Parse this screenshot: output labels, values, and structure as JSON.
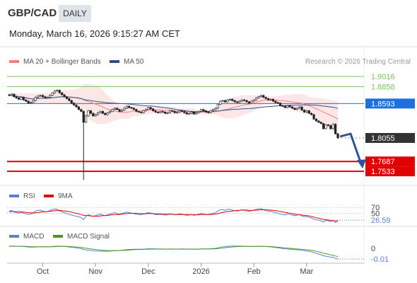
{
  "header": {
    "pair": "GBP/CAD",
    "timeframe": "DAILY",
    "datetime": "Monday, March 16, 2026 9:15:27 AM CET"
  },
  "colors": {
    "ma20": "#f08080",
    "ma50": "#2e4f8a",
    "rsi": "#5b7fd6",
    "rsi_ma": "#e00000",
    "macd": "#5b7fd6",
    "macd_signal": "#4a9a1a",
    "resistance": "#7cc35a",
    "support": "#e00000",
    "pivot": "#1f6fe0",
    "last": "#333333"
  },
  "chart_data": [
    {
      "type": "candlestick",
      "legend": [
        {
          "label": "MA 20 + Bollinger Bands",
          "color": "#f08080"
        },
        {
          "label": "MA 50",
          "color": "#2e4f8a"
        }
      ],
      "source_note": "Research © 2026 Trading Central",
      "x_ticks": [
        "Oct",
        "Nov",
        "Dec",
        "2026",
        "Feb",
        "Mar"
      ],
      "ylim": [
        1.738,
        1.915
      ],
      "levels": [
        {
          "value": 1.9016,
          "label": "1.9016",
          "kind": "resistance"
        },
        {
          "value": 1.8858,
          "label": "1.8858",
          "kind": "resistance"
        },
        {
          "value": 1.8593,
          "label": "1.8593",
          "kind": "pivot"
        },
        {
          "value": 1.8055,
          "label": "1.8055",
          "kind": "last"
        },
        {
          "value": 1.7687,
          "label": "1.7687",
          "kind": "support"
        },
        {
          "value": 1.7533,
          "label": "1.7533",
          "kind": "support"
        }
      ],
      "close": [
        1.872,
        1.874,
        1.87,
        1.868,
        1.866,
        1.869,
        1.865,
        1.863,
        1.86,
        1.861,
        1.864,
        1.869,
        1.871,
        1.872,
        1.87,
        1.868,
        1.869,
        1.872,
        1.876,
        1.879,
        1.88,
        1.876,
        1.873,
        1.87,
        1.867,
        1.864,
        1.86,
        1.857,
        1.854,
        1.85,
        1.847,
        1.83,
        1.84,
        1.848,
        1.844,
        1.84,
        1.842,
        1.845,
        1.847,
        1.844,
        1.842,
        1.845,
        1.847,
        1.85,
        1.852,
        1.85,
        1.847,
        1.849,
        1.852,
        1.855,
        1.853,
        1.852,
        1.85,
        1.847,
        1.846,
        1.845,
        1.848,
        1.85,
        1.853,
        1.851,
        1.848,
        1.846,
        1.845,
        1.847,
        1.846,
        1.844,
        1.845,
        1.848,
        1.847,
        1.845,
        1.846,
        1.848,
        1.847,
        1.845,
        1.843,
        1.844,
        1.846,
        1.843,
        1.845,
        1.847,
        1.85,
        1.848,
        1.846,
        1.845,
        1.848,
        1.85,
        1.852,
        1.858,
        1.863,
        1.864,
        1.862,
        1.865,
        1.866,
        1.864,
        1.862,
        1.861,
        1.863,
        1.865,
        1.864,
        1.862,
        1.86,
        1.863,
        1.865,
        1.868,
        1.87,
        1.872,
        1.869,
        1.867,
        1.865,
        1.866,
        1.863,
        1.861,
        1.86,
        1.856,
        1.855,
        1.853,
        1.856,
        1.854,
        1.852,
        1.85,
        1.852,
        1.854,
        1.849,
        1.846,
        1.848,
        1.844,
        1.842,
        1.835,
        1.832,
        1.83,
        1.828,
        1.82,
        1.826,
        1.825,
        1.82,
        1.827,
        1.812,
        1.8055
      ]
    },
    {
      "type": "line",
      "legend": [
        {
          "label": "RSI",
          "color": "#5b7fd6"
        },
        {
          "label": "9MA",
          "color": "#e00000"
        }
      ],
      "ylim": [
        15,
        85
      ],
      "levels": [
        {
          "value": 70,
          "label": "70"
        },
        {
          "value": 50,
          "label": "50"
        }
      ],
      "last_label": "26.59",
      "series": [
        {
          "name": "RSI",
          "values": [
            58,
            60,
            55,
            52,
            50,
            54,
            50,
            48,
            46,
            47,
            52,
            58,
            60,
            61,
            57,
            55,
            56,
            60,
            63,
            65,
            64,
            58,
            55,
            52,
            49,
            46,
            44,
            42,
            40,
            38,
            36,
            28,
            40,
            45,
            42,
            40,
            42,
            45,
            47,
            44,
            42,
            45,
            47,
            50,
            52,
            49,
            47,
            49,
            52,
            54,
            52,
            51,
            49,
            47,
            46,
            45,
            48,
            50,
            53,
            51,
            48,
            46,
            45,
            47,
            46,
            44,
            45,
            48,
            47,
            45,
            46,
            48,
            47,
            45,
            43,
            44,
            46,
            43,
            45,
            47,
            50,
            48,
            46,
            45,
            48,
            50,
            52,
            58,
            62,
            63,
            60,
            63,
            64,
            61,
            59,
            58,
            60,
            62,
            60,
            58,
            56,
            59,
            61,
            63,
            65,
            66,
            62,
            59,
            57,
            58,
            54,
            52,
            51,
            47,
            46,
            44,
            48,
            46,
            44,
            42,
            44,
            46,
            41,
            38,
            40,
            36,
            34,
            30,
            28,
            26,
            25,
            20,
            26,
            25,
            21,
            27,
            18,
            26.59
          ]
        },
        {
          "name": "9MA",
          "values": [
            55,
            56,
            56,
            55,
            55,
            55,
            54,
            53,
            52,
            52,
            51,
            52,
            53,
            54,
            55,
            55,
            56,
            57,
            58,
            59,
            60,
            60,
            59,
            58,
            57,
            56,
            54,
            52,
            50,
            48,
            46,
            43,
            42,
            42,
            41,
            40,
            40,
            40,
            41,
            42,
            42,
            43,
            44,
            45,
            46,
            46,
            46,
            47,
            48,
            49,
            50,
            50,
            50,
            50,
            49,
            49,
            48,
            48,
            49,
            49,
            49,
            48,
            48,
            48,
            47,
            47,
            47,
            47,
            47,
            46,
            46,
            46,
            46,
            46,
            46,
            46,
            45,
            45,
            45,
            45,
            46,
            46,
            46,
            46,
            46,
            47,
            47,
            49,
            51,
            53,
            54,
            56,
            57,
            58,
            59,
            60,
            60,
            61,
            61,
            61,
            60,
            60,
            60,
            61,
            61,
            62,
            62,
            62,
            61,
            61,
            60,
            59,
            58,
            56,
            55,
            53,
            52,
            50,
            49,
            47,
            46,
            45,
            44,
            43,
            42,
            41,
            39,
            37,
            35,
            33,
            31,
            29,
            28,
            27,
            26,
            25,
            24,
            24
          ]
        }
      ]
    },
    {
      "type": "line",
      "legend": [
        {
          "label": "MACD",
          "color": "#5b7fd6"
        },
        {
          "label": "MACD Signal",
          "color": "#4a9a1a"
        }
      ],
      "ylim": [
        -0.014,
        0.006
      ],
      "levels": [
        {
          "value": 0,
          "label": "0"
        },
        {
          "value": -0.01,
          "label": "-0.01"
        }
      ],
      "series": [
        {
          "name": "MACD",
          "values": [
            0.002,
            0.0021,
            0.0021,
            0.002,
            0.0019,
            0.0018,
            0.0017,
            0.0015,
            0.0013,
            0.0012,
            0.0012,
            0.0013,
            0.0014,
            0.0015,
            0.0015,
            0.0014,
            0.0014,
            0.0015,
            0.0017,
            0.0019,
            0.0021,
            0.0021,
            0.002,
            0.0018,
            0.0016,
            0.0013,
            0.001,
            0.0007,
            0.0004,
            0.0001,
            -0.0003,
            -0.0011,
            -0.0015,
            -0.0017,
            -0.002,
            -0.0023,
            -0.0025,
            -0.0026,
            -0.0026,
            -0.0027,
            -0.0027,
            -0.0027,
            -0.0026,
            -0.0024,
            -0.0022,
            -0.002,
            -0.0019,
            -0.0017,
            -0.0015,
            -0.0012,
            -0.001,
            -0.0009,
            -0.0008,
            -0.0008,
            -0.0008,
            -0.0008,
            -0.0007,
            -0.0006,
            -0.0004,
            -0.0004,
            -0.0004,
            -0.0005,
            -0.0006,
            -0.0006,
            -0.0006,
            -0.0007,
            -0.0007,
            -0.0006,
            -0.0006,
            -0.0007,
            -0.0007,
            -0.0006,
            -0.0006,
            -0.0006,
            -0.0007,
            -0.0007,
            -0.0007,
            -0.0008,
            -0.0008,
            -0.0007,
            -0.0005,
            -0.0005,
            -0.0005,
            -0.0005,
            -0.0004,
            -0.0002,
            0.0,
            0.0005,
            0.001,
            0.0014,
            0.0016,
            0.0019,
            0.0021,
            0.0022,
            0.0022,
            0.0021,
            0.0021,
            0.0021,
            0.002,
            0.0019,
            0.0017,
            0.0017,
            0.0017,
            0.0018,
            0.0019,
            0.002,
            0.0019,
            0.0017,
            0.0015,
            0.0014,
            0.0011,
            0.0008,
            0.0005,
            0.0001,
            -0.0002,
            -0.0005,
            -0.0006,
            -0.0008,
            -0.001,
            -0.0013,
            -0.0014,
            -0.0014,
            -0.0018,
            -0.0022,
            -0.0024,
            -0.0028,
            -0.0032,
            -0.004,
            -0.0047,
            -0.0054,
            -0.006,
            -0.007,
            -0.0074,
            -0.0078,
            -0.0083,
            -0.0084,
            -0.0095,
            -0.0101
          ]
        },
        {
          "name": "MACD Signal",
          "values": [
            0.0018,
            0.0019,
            0.0019,
            0.0019,
            0.0019,
            0.0019,
            0.0019,
            0.0018,
            0.0017,
            0.0016,
            0.0015,
            0.0015,
            0.0015,
            0.0015,
            0.0015,
            0.0015,
            0.0015,
            0.0015,
            0.0015,
            0.0016,
            0.0017,
            0.0018,
            0.0018,
            0.0018,
            0.0018,
            0.0017,
            0.0016,
            0.0014,
            0.0013,
            0.0011,
            0.0008,
            0.0004,
            0.0001,
            -0.0002,
            -0.0005,
            -0.0008,
            -0.0011,
            -0.0014,
            -0.0016,
            -0.0018,
            -0.002,
            -0.0021,
            -0.0022,
            -0.0022,
            -0.0022,
            -0.0022,
            -0.0021,
            -0.002,
            -0.0019,
            -0.0018,
            -0.0016,
            -0.0015,
            -0.0013,
            -0.0012,
            -0.0011,
            -0.0011,
            -0.001,
            -0.0009,
            -0.0008,
            -0.0007,
            -0.0007,
            -0.0007,
            -0.0007,
            -0.0007,
            -0.0007,
            -0.0007,
            -0.0007,
            -0.0007,
            -0.0007,
            -0.0007,
            -0.0007,
            -0.0007,
            -0.0007,
            -0.0007,
            -0.0007,
            -0.0007,
            -0.0007,
            -0.0007,
            -0.0007,
            -0.0007,
            -0.0007,
            -0.0006,
            -0.0006,
            -0.0006,
            -0.0006,
            -0.0005,
            -0.0004,
            -0.0002,
            0.0,
            0.0003,
            0.0006,
            0.0009,
            0.0011,
            0.0013,
            0.0015,
            0.0016,
            0.0017,
            0.0018,
            0.0018,
            0.0018,
            0.0018,
            0.0018,
            0.0018,
            0.0018,
            0.0018,
            0.0018,
            0.0018,
            0.0018,
            0.0017,
            0.0016,
            0.0015,
            0.0013,
            0.0011,
            0.0009,
            0.0006,
            0.0004,
            0.0002,
            0.0,
            -0.0002,
            -0.0004,
            -0.0006,
            -0.0007,
            -0.0009,
            -0.0011,
            -0.0014,
            -0.0016,
            -0.0019,
            -0.0023,
            -0.0028,
            -0.0033,
            -0.0039,
            -0.0045,
            -0.0051,
            -0.0056,
            -0.0062,
            -0.0066,
            -0.0072,
            -0.0078
          ]
        }
      ]
    }
  ]
}
